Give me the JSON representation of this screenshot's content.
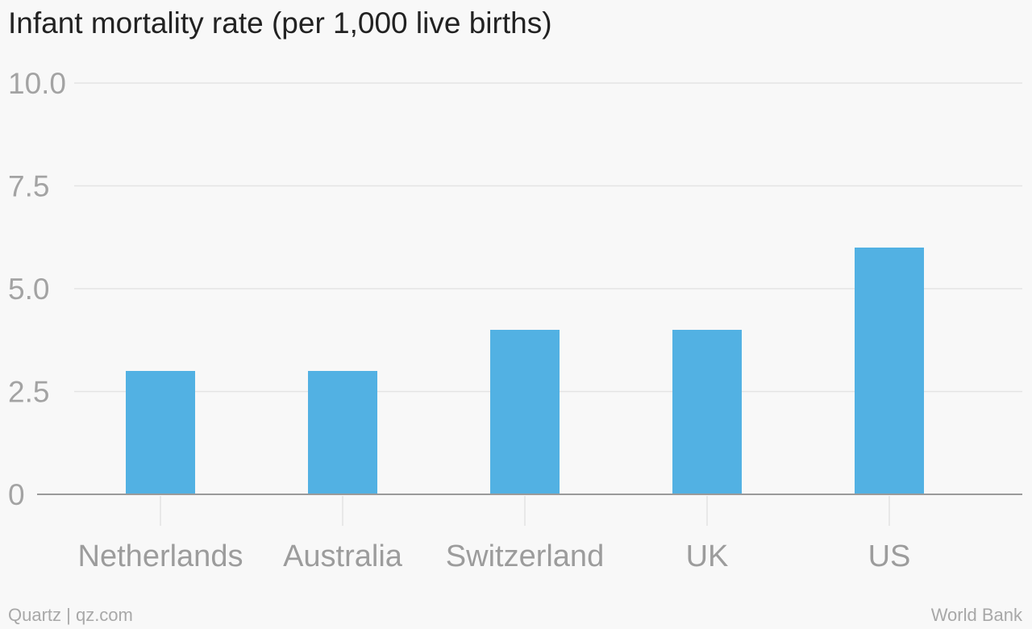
{
  "chart_data": {
    "type": "bar",
    "title": "Infant mortality rate (per 1,000 live births)",
    "xlabel": "",
    "ylabel": "",
    "categories": [
      "Netherlands",
      "Australia",
      "Switzerland",
      "UK",
      "US"
    ],
    "values": [
      3,
      3,
      4,
      4,
      6
    ],
    "ylim": [
      0,
      10
    ],
    "yticks": [
      0,
      2.5,
      5.0,
      7.5,
      10.0
    ],
    "ytick_labels": [
      "0",
      "2.5",
      "5.0",
      "7.5",
      "10.0"
    ],
    "grid": true,
    "bar_color": "#52b1e3"
  },
  "footer": {
    "credit": "Quartz | qz.com",
    "source": "World Bank"
  }
}
